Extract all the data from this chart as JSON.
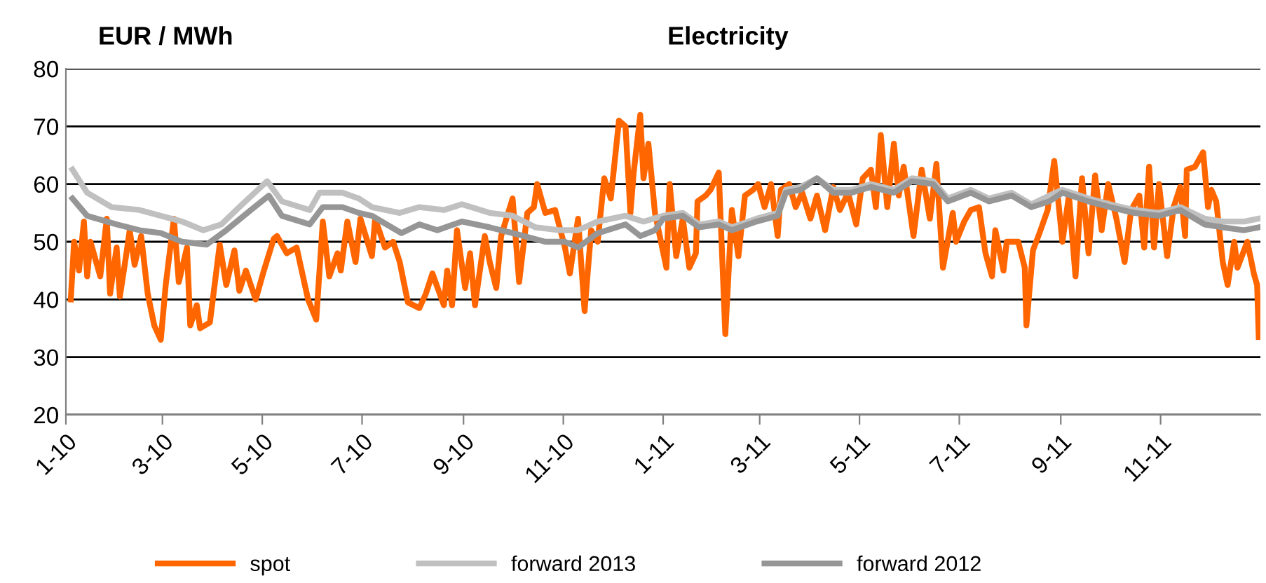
{
  "chart_data": {
    "type": "line",
    "title": "Electricity",
    "ylabel": "EUR / MWh",
    "xlim": [
      "2010-01-01",
      "2012-01-01"
    ],
    "xticks": [
      {
        "value": "2010-01-01",
        "label": "1-10"
      },
      {
        "value": "2010-03-01",
        "label": "3-10"
      },
      {
        "value": "2010-05-01",
        "label": "5-10"
      },
      {
        "value": "2010-07-01",
        "label": "7-10"
      },
      {
        "value": "2010-09-01",
        "label": "9-10"
      },
      {
        "value": "2010-11-01",
        "label": "11-10"
      },
      {
        "value": "2011-01-01",
        "label": "1-11"
      },
      {
        "value": "2011-03-01",
        "label": "3-11"
      },
      {
        "value": "2011-05-01",
        "label": "5-11"
      },
      {
        "value": "2011-07-01",
        "label": "7-11"
      },
      {
        "value": "2011-09-01",
        "label": "9-11"
      },
      {
        "value": "2011-11-01",
        "label": "11-11"
      }
    ],
    "ylim": [
      20,
      80
    ],
    "yticks": [
      20,
      30,
      40,
      50,
      60,
      70,
      80
    ],
    "grid": "y",
    "legend": "bottom",
    "marker": "none",
    "line_style": "solid",
    "series": [
      {
        "name": "spot",
        "color": "#ff6600",
        "x": [
          "2010-01-04",
          "2010-01-06",
          "2010-01-09",
          "2010-01-12",
          "2010-01-14",
          "2010-01-16",
          "2010-01-22",
          "2010-01-26",
          "2010-01-28",
          "2010-02-01",
          "2010-02-03",
          "2010-02-07",
          "2010-02-09",
          "2010-02-12",
          "2010-02-16",
          "2010-02-20",
          "2010-02-24",
          "2010-02-28",
          "2010-03-03",
          "2010-03-08",
          "2010-03-11",
          "2010-03-16",
          "2010-03-18",
          "2010-03-22",
          "2010-03-24",
          "2010-03-30",
          "2010-04-05",
          "2010-04-09",
          "2010-04-14",
          "2010-04-17",
          "2010-04-21",
          "2010-04-27",
          "2010-05-02",
          "2010-05-08",
          "2010-05-10",
          "2010-05-16",
          "2010-05-22",
          "2010-05-29",
          "2010-06-03",
          "2010-06-07",
          "2010-06-11",
          "2010-06-16",
          "2010-06-18",
          "2010-06-22",
          "2010-06-27",
          "2010-06-30",
          "2010-07-07",
          "2010-07-09",
          "2010-07-15",
          "2010-07-20",
          "2010-07-24",
          "2010-07-29",
          "2010-08-05",
          "2010-08-09",
          "2010-08-13",
          "2010-08-20",
          "2010-08-22",
          "2010-08-25",
          "2010-08-28",
          "2010-09-02",
          "2010-09-05",
          "2010-09-08",
          "2010-09-14",
          "2010-09-17",
          "2010-09-21",
          "2010-09-24",
          "2010-10-01",
          "2010-10-05",
          "2010-10-10",
          "2010-10-14",
          "2010-10-16",
          "2010-10-21",
          "2010-10-27",
          "2010-11-02",
          "2010-11-05",
          "2010-11-10",
          "2010-11-14",
          "2010-11-18",
          "2010-11-22",
          "2010-11-26",
          "2010-11-30",
          "2010-12-05",
          "2010-12-09",
          "2010-12-12",
          "2010-12-14",
          "2010-12-18",
          "2010-12-20",
          "2010-12-23",
          "2010-12-27",
          "2011-01-03",
          "2011-01-05",
          "2011-01-09",
          "2011-01-13",
          "2011-01-17",
          "2011-01-21",
          "2011-01-22",
          "2011-01-27",
          "2011-01-30",
          "2011-02-04",
          "2011-02-08",
          "2011-02-12",
          "2011-02-16",
          "2011-02-20",
          "2011-02-25",
          "2011-02-28",
          "2011-03-04",
          "2011-03-08",
          "2011-03-12",
          "2011-03-14",
          "2011-03-19",
          "2011-03-23",
          "2011-03-27",
          "2011-04-01",
          "2011-04-05",
          "2011-04-10",
          "2011-04-15",
          "2011-04-19",
          "2011-04-24",
          "2011-04-29",
          "2011-05-03",
          "2011-05-08",
          "2011-05-11",
          "2011-05-14",
          "2011-05-18",
          "2011-05-22",
          "2011-05-25",
          "2011-05-28",
          "2011-06-03",
          "2011-06-08",
          "2011-06-13",
          "2011-06-17",
          "2011-06-21",
          "2011-06-27",
          "2011-06-29",
          "2011-07-04",
          "2011-07-08",
          "2011-07-13",
          "2011-07-17",
          "2011-07-21",
          "2011-07-23",
          "2011-07-28",
          "2011-07-30",
          "2011-08-06",
          "2011-08-10",
          "2011-08-11",
          "2011-08-15",
          "2011-08-19",
          "2011-08-24",
          "2011-08-28",
          "2011-09-02",
          "2011-09-06",
          "2011-09-10",
          "2011-09-14",
          "2011-09-18",
          "2011-09-22",
          "2011-09-26",
          "2011-09-30",
          "2011-10-05",
          "2011-10-10",
          "2011-10-14",
          "2011-10-19",
          "2011-10-22",
          "2011-10-25",
          "2011-10-28",
          "2011-10-31",
          "2011-11-05",
          "2011-11-09",
          "2011-11-13",
          "2011-11-16",
          "2011-11-17",
          "2011-11-22",
          "2011-11-27",
          "2011-11-30",
          "2011-12-02",
          "2011-12-05",
          "2011-12-09",
          "2011-12-12",
          "2011-12-16",
          "2011-12-18",
          "2011-12-24",
          "2011-12-28",
          "2011-12-30",
          "2011-12-31"
        ],
        "values": [
          40,
          50,
          45,
          53.5,
          44,
          50,
          44,
          54,
          41,
          49,
          40.5,
          48,
          52,
          46,
          51,
          41,
          35.5,
          33,
          42.5,
          54,
          43,
          49,
          35.5,
          39,
          35,
          36,
          49.5,
          42.5,
          48.5,
          41.5,
          45,
          40,
          45,
          50.5,
          51,
          48,
          49,
          40,
          36.5,
          53.5,
          44,
          48,
          45,
          53.5,
          46.5,
          54,
          47.5,
          54,
          49,
          50,
          46.5,
          39.5,
          38.5,
          41,
          44.5,
          39,
          45,
          39,
          52,
          42,
          48,
          39,
          51,
          46.5,
          42,
          51,
          57.5,
          43,
          55,
          56,
          60,
          55,
          55.5,
          49,
          44.5,
          54,
          38,
          52,
          50,
          61,
          57.5,
          71,
          70,
          55,
          62,
          72,
          61,
          67,
          55,
          45.5,
          60,
          47.5,
          54,
          45.5,
          48,
          57,
          58,
          59,
          62,
          34,
          55.5,
          47.5,
          58,
          59,
          60,
          56,
          60,
          51,
          59,
          60,
          56,
          58.5,
          54,
          58,
          52,
          59.5,
          55.5,
          58.5,
          53,
          61,
          62.5,
          56,
          68.5,
          56,
          67,
          58,
          63,
          51,
          62.5,
          54,
          63.5,
          45.5,
          55,
          50,
          53.5,
          55.5,
          56,
          48,
          44,
          52,
          45,
          50,
          50,
          45.5,
          35.5,
          48.5,
          51.5,
          55.5,
          64,
          50,
          58,
          44,
          61,
          48,
          61.5,
          52,
          60,
          54,
          46.5,
          55.5,
          58,
          49,
          63,
          49,
          60,
          47.5,
          56,
          59.5,
          51,
          62.5,
          63,
          65.5,
          56,
          59,
          57,
          46.5,
          42.5,
          50,
          45.5,
          50,
          44.5,
          42.5,
          33.5
        ]
      },
      {
        "name": "forward 2013",
        "color": "#c0c0c0",
        "x": [
          "2010-01-05",
          "2010-01-14",
          "2010-01-29",
          "2010-02-15",
          "2010-02-28",
          "2010-03-13",
          "2010-03-26",
          "2010-04-06",
          "2010-04-17",
          "2010-05-04",
          "2010-05-13",
          "2010-05-30",
          "2010-06-05",
          "2010-06-19",
          "2010-06-29",
          "2010-07-07",
          "2010-07-24",
          "2010-08-05",
          "2010-08-20",
          "2010-08-31",
          "2010-09-17",
          "2010-10-01",
          "2010-10-15",
          "2010-10-30",
          "2010-11-10",
          "2010-11-22",
          "2010-12-09",
          "2010-12-20",
          "2011-01-01",
          "2011-01-13",
          "2011-01-23",
          "2011-02-04",
          "2011-02-12",
          "2011-02-27",
          "2011-03-12",
          "2011-03-17",
          "2011-03-26",
          "2011-04-05",
          "2011-04-15",
          "2011-04-26",
          "2011-05-08",
          "2011-05-22",
          "2011-06-02",
          "2011-06-15",
          "2011-06-24",
          "2011-07-08",
          "2011-07-19",
          "2011-08-02",
          "2011-08-14",
          "2011-08-25",
          "2011-09-02",
          "2011-09-18",
          "2011-10-01",
          "2011-10-16",
          "2011-10-31",
          "2011-11-13",
          "2011-11-28",
          "2011-12-09",
          "2011-12-22",
          "2011-12-31"
        ],
        "values": [
          62.5,
          58.5,
          56,
          55.5,
          54.5,
          53.5,
          52,
          53,
          56,
          60.5,
          57,
          55.5,
          58.5,
          58.5,
          57.5,
          56,
          55,
          56,
          55.5,
          56.5,
          55,
          54.5,
          52.5,
          52,
          52,
          53.5,
          54.5,
          53.5,
          54.5,
          55,
          53,
          53.5,
          52.5,
          54,
          55,
          59,
          59.5,
          61,
          59,
          59,
          60,
          59,
          61,
          60.5,
          57.5,
          59,
          57.5,
          58.5,
          56.5,
          58,
          59,
          57.5,
          56.5,
          55.5,
          55,
          56,
          54,
          53.5,
          53.5,
          54
        ]
      },
      {
        "name": "forward 2012",
        "color": "#969696",
        "x": [
          "2010-01-05",
          "2010-01-14",
          "2010-02-01",
          "2010-02-15",
          "2010-02-28",
          "2010-03-13",
          "2010-03-28",
          "2010-04-09",
          "2010-04-24",
          "2010-05-05",
          "2010-05-13",
          "2010-05-30",
          "2010-06-07",
          "2010-06-19",
          "2010-06-29",
          "2010-07-07",
          "2010-07-25",
          "2010-08-05",
          "2010-08-16",
          "2010-08-31",
          "2010-09-17",
          "2010-10-01",
          "2010-10-21",
          "2010-11-02",
          "2010-11-10",
          "2010-11-22",
          "2010-12-09",
          "2010-12-18",
          "2010-12-27",
          "2011-01-01",
          "2011-01-13",
          "2011-01-23",
          "2011-02-04",
          "2011-02-12",
          "2011-02-27",
          "2011-03-12",
          "2011-03-17",
          "2011-03-26",
          "2011-04-05",
          "2011-04-15",
          "2011-04-26",
          "2011-05-08",
          "2011-05-22",
          "2011-06-02",
          "2011-06-15",
          "2011-06-24",
          "2011-07-08",
          "2011-07-19",
          "2011-08-02",
          "2011-08-14",
          "2011-08-25",
          "2011-09-02",
          "2011-09-18",
          "2011-10-01",
          "2011-10-16",
          "2011-10-31",
          "2011-11-13",
          "2011-11-28",
          "2011-12-09",
          "2011-12-22",
          "2011-12-31"
        ],
        "values": [
          57.5,
          54.5,
          53,
          52,
          51.5,
          50,
          49.5,
          52,
          55.5,
          58,
          54.5,
          53,
          56,
          56,
          55,
          54.5,
          51.5,
          53,
          52,
          53.5,
          52.5,
          51.5,
          50,
          50,
          49,
          51.5,
          53,
          51,
          52,
          54,
          54.5,
          52.5,
          53,
          52,
          53.5,
          54.5,
          58.5,
          59,
          61,
          58.5,
          58.5,
          59.5,
          58.5,
          60.5,
          60,
          57,
          58.5,
          57,
          58,
          56,
          57,
          58.5,
          57,
          56,
          55,
          54.5,
          55.5,
          53,
          52.5,
          52,
          52.5
        ]
      }
    ]
  }
}
